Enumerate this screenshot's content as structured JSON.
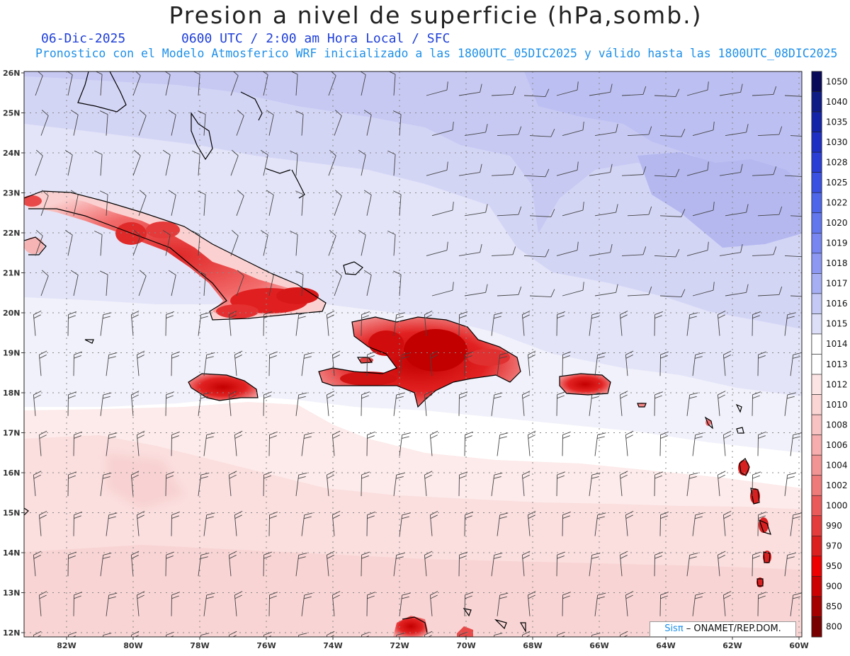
{
  "header": {
    "title": "Presion a nivel de superficie (hPa,somb.)",
    "date": "06-Dic-2025",
    "time": "0600 UTC / 2:00 am Hora Local / SFC",
    "subtitle": "Pronostico con el Modelo Atmosferico WRF inicializado a las 1800UTC_05DIC2025 y válido hasta las  1800UTC_08DIC2025"
  },
  "map": {
    "lat_labels": [
      "26N",
      "25N",
      "24N",
      "23N",
      "22N",
      "21N",
      "20N",
      "19N",
      "18N",
      "17N",
      "16N",
      "15N",
      "14N",
      "13N",
      "12N"
    ],
    "lon_labels": [
      "82W",
      "80W",
      "78W",
      "76W",
      "74W",
      "72W",
      "70W",
      "68W",
      "66W",
      "64W",
      "62W",
      "60W"
    ]
  },
  "legend": {
    "levels": [
      "1050",
      "1040",
      "1035",
      "1030",
      "1028",
      "1025",
      "1022",
      "1020",
      "1019",
      "1018",
      "1017",
      "1016",
      "1015",
      "1014",
      "1013",
      "1012",
      "1010",
      "1008",
      "1006",
      "1004",
      "1002",
      "1000",
      "990",
      "970",
      "950",
      "900",
      "850",
      "800"
    ],
    "colors": [
      "#0a0a5a",
      "#101c86",
      "#1424a8",
      "#1e30c4",
      "#2a3ed6",
      "#3a50e2",
      "#4e66ea",
      "#6276ee",
      "#7786f0",
      "#8c98f2",
      "#a6aff4",
      "#c4c9f6",
      "#dddff8",
      "#ffffff",
      "#ffffff",
      "#fde4e4",
      "#fbd4d4",
      "#f9c2c2",
      "#f7adad",
      "#f39494",
      "#ef7a7a",
      "#ea5a5a",
      "#e43c3c",
      "#dc2020",
      "#ee0000",
      "#cc0000",
      "#a40000",
      "#780000"
    ]
  },
  "credit": {
    "sis": "Sisπ",
    "rest": " – ONAMET/REP.DOM."
  }
}
